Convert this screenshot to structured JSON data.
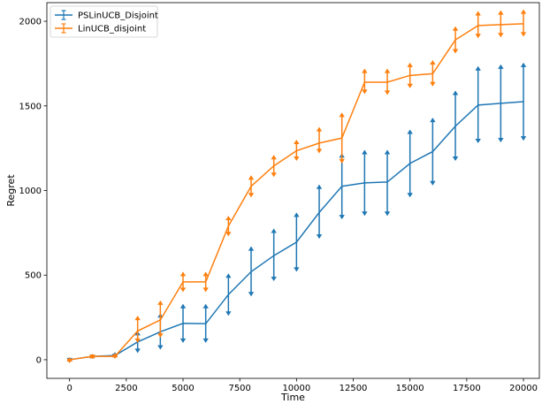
{
  "chart_data": {
    "type": "line",
    "xlabel": "Time",
    "ylabel": "Regret",
    "xlim": [
      -1000,
      20700
    ],
    "ylim": [
      -110,
      2110
    ],
    "xticks": [
      0,
      2500,
      5000,
      7500,
      10000,
      12500,
      15000,
      17500,
      20000
    ],
    "yticks": [
      0,
      500,
      1000,
      1500,
      2000
    ],
    "grid": false,
    "legend_position": "top-left",
    "x": [
      0,
      1000,
      2000,
      3000,
      4000,
      5000,
      6000,
      7000,
      8000,
      9000,
      10000,
      11000,
      12000,
      13000,
      14000,
      15000,
      16000,
      17000,
      18000,
      19000,
      20000
    ],
    "series": [
      {
        "name": "PSLinUCB_Disjoint",
        "color": "#1f77b4",
        "values": [
          0,
          20,
          25,
          105,
          165,
          215,
          213,
          385,
          520,
          615,
          695,
          870,
          1025,
          1045,
          1050,
          1160,
          1230,
          1380,
          1505,
          1515,
          1525
        ],
        "err_low": [
          -10,
          10,
          15,
          45,
          65,
          105,
          105,
          265,
          380,
          470,
          525,
          720,
          835,
          855,
          855,
          965,
          1035,
          1180,
          1285,
          1290,
          1300
        ],
        "err_high": [
          10,
          30,
          40,
          165,
          270,
          325,
          325,
          505,
          665,
          770,
          865,
          1030,
          1215,
          1235,
          1235,
          1355,
          1425,
          1585,
          1730,
          1740,
          1750
        ]
      },
      {
        "name": "LinUCB_disjoint",
        "color": "#ff7f0e",
        "values": [
          0,
          20,
          20,
          170,
          235,
          460,
          460,
          790,
          1025,
          1145,
          1235,
          1280,
          1310,
          1640,
          1640,
          1680,
          1690,
          1890,
          1975,
          1980,
          1985
        ],
        "err_low": [
          -15,
          10,
          10,
          105,
          135,
          405,
          405,
          735,
          965,
          1085,
          1180,
          1225,
          1165,
          1575,
          1570,
          1610,
          1620,
          1815,
          1905,
          1910,
          1915
        ],
        "err_high": [
          10,
          30,
          35,
          255,
          345,
          515,
          515,
          845,
          1085,
          1205,
          1295,
          1370,
          1455,
          1715,
          1715,
          1750,
          1765,
          1965,
          2055,
          2060,
          2065
        ]
      }
    ]
  }
}
